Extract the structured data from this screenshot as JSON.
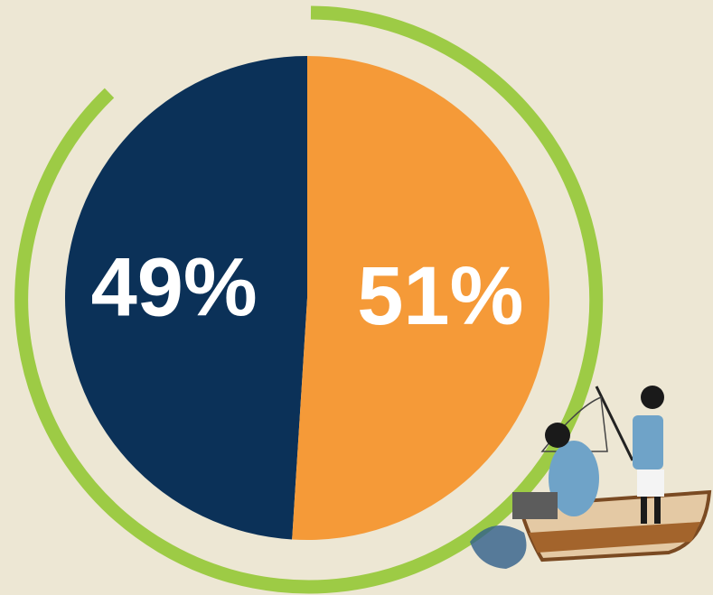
{
  "chart_data": {
    "type": "pie",
    "values": [
      49,
      51
    ],
    "value_labels": [
      "49%",
      "51%"
    ],
    "colors": [
      "#0b3158",
      "#f59a38"
    ]
  }
}
